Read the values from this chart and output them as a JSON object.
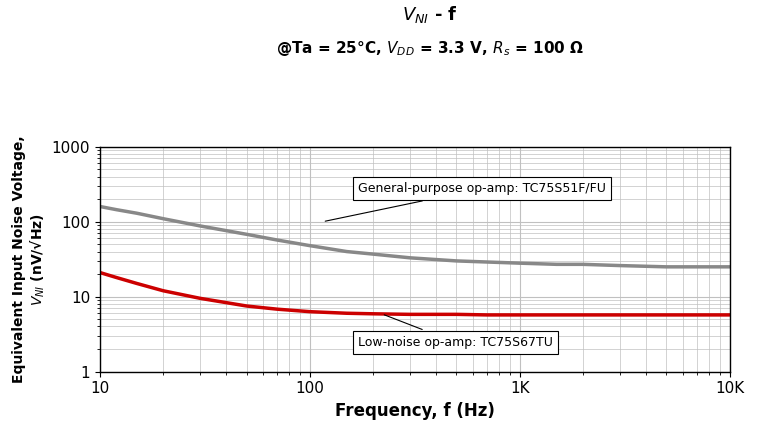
{
  "xlabel": "Frequency, f (Hz)",
  "xlim": [
    10,
    10000
  ],
  "ylim": [
    1,
    1000
  ],
  "gray_curve_color": "#888888",
  "red_curve_color": "#cc0000",
  "background_color": "#ffffff",
  "grid_color": "#c0c0c0",
  "gray_label": "General-purpose op-amp: TC75S51F/FU",
  "red_label": "Low-noise op-amp: TC75S67TU",
  "gray_x": [
    10,
    12,
    15,
    20,
    30,
    50,
    70,
    100,
    150,
    200,
    300,
    500,
    700,
    1000,
    1500,
    2000,
    3000,
    5000,
    7000,
    10000
  ],
  "gray_y": [
    160,
    145,
    130,
    110,
    88,
    68,
    57,
    48,
    40,
    37,
    33,
    30,
    29,
    28,
    27,
    27,
    26,
    25,
    25,
    25
  ],
  "red_x": [
    10,
    12,
    15,
    20,
    30,
    50,
    70,
    100,
    150,
    200,
    300,
    500,
    700,
    1000,
    1500,
    2000,
    3000,
    5000,
    7000,
    10000
  ],
  "red_y": [
    21,
    18,
    15,
    12,
    9.5,
    7.5,
    6.8,
    6.3,
    6.0,
    5.9,
    5.8,
    5.8,
    5.7,
    5.7,
    5.7,
    5.7,
    5.7,
    5.7,
    5.7,
    5.7
  ]
}
